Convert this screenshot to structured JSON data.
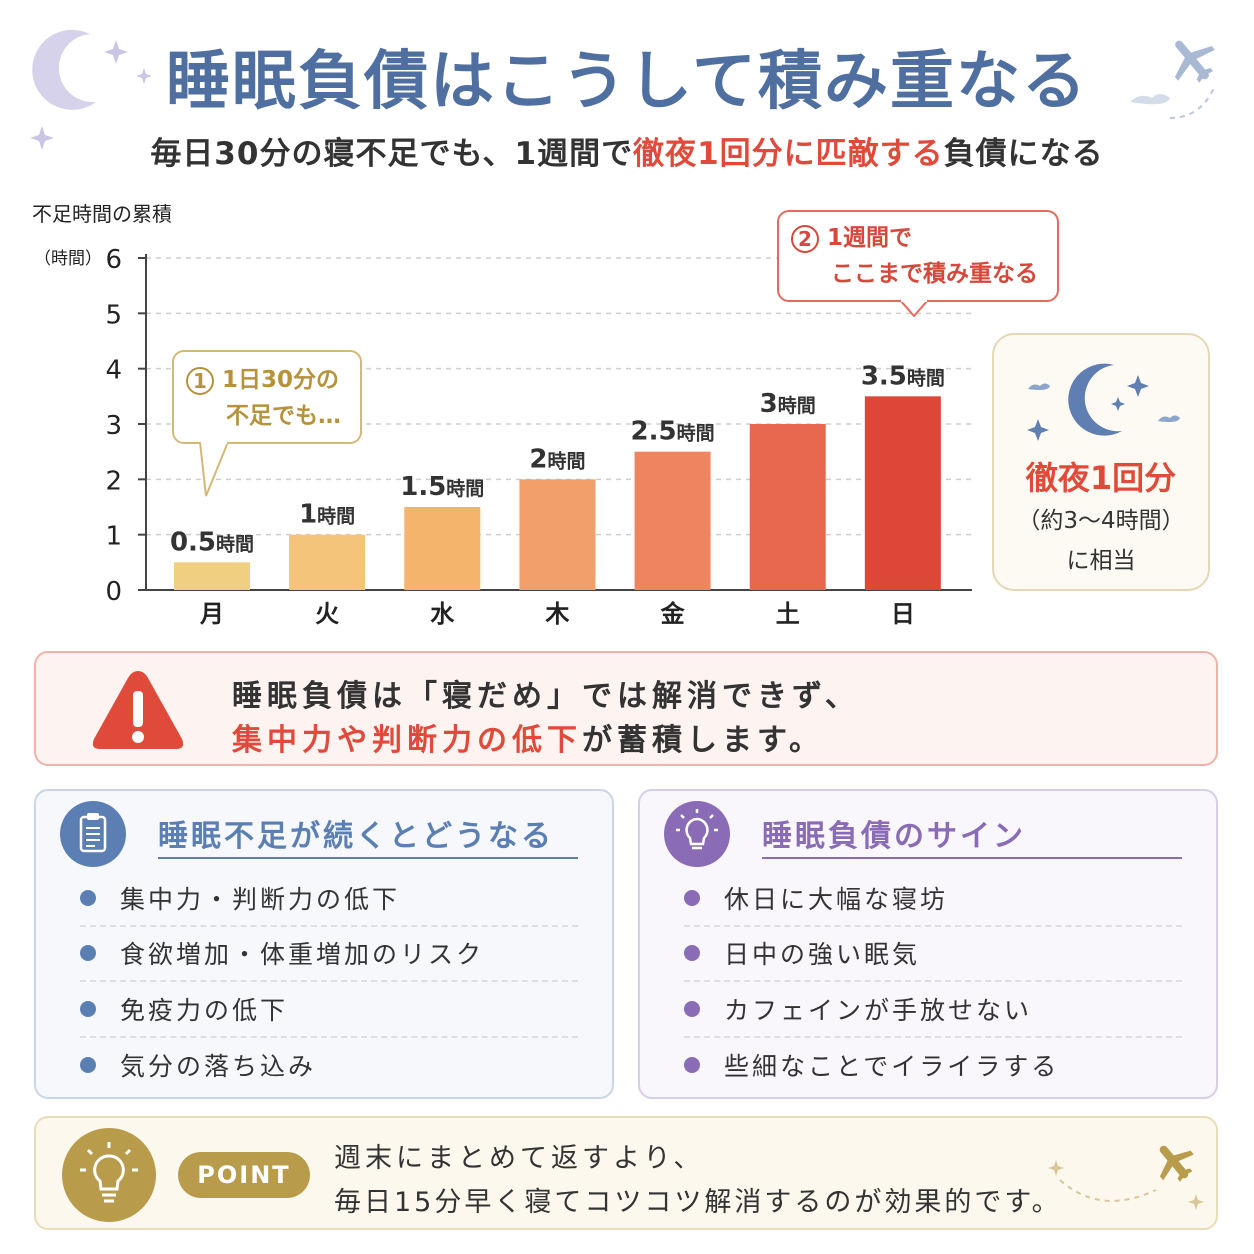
{
  "header": {
    "title": "睡眠負債はこうして積み重なる",
    "subtitle_pre": "毎日30分の寝不足でも、1週間で",
    "subtitle_highlight": "徹夜1回分に匹敵する",
    "subtitle_post": "負債になる"
  },
  "chart_data": {
    "type": "bar",
    "title": "",
    "ylabel": "不足時間の累積",
    "yunit": "（時間）",
    "xlabel": "",
    "ylim": [
      0,
      6
    ],
    "yticks": [
      0,
      1,
      2,
      3,
      4,
      5,
      6
    ],
    "categories": [
      "月",
      "火",
      "水",
      "木",
      "金",
      "土",
      "日"
    ],
    "values": [
      0.5,
      1,
      1.5,
      2,
      2.5,
      3,
      3.5
    ],
    "value_labels": [
      "0.5",
      "1",
      "1.5",
      "2",
      "2.5",
      "3",
      "3.5"
    ],
    "value_unit": "時間",
    "bar_colors": [
      "#efcf82",
      "#f4c47b",
      "#f4b46b",
      "#f29f6a",
      "#ee8460",
      "#e8674f",
      "#dd4738"
    ],
    "grid": true
  },
  "callouts": {
    "first": {
      "num": "1",
      "line1": "1日30分の",
      "line2": "不足でも…"
    },
    "second": {
      "num": "2",
      "line1": "1週間で",
      "line2": "ここまで積み重なる"
    }
  },
  "night_card": {
    "title": "徹夜1回分",
    "sub": "（約3〜4時間）",
    "sub2": "に相当",
    "icon": "moon-stars-icon"
  },
  "warning": {
    "icon": "warning-icon",
    "line1": "睡眠負債は「寝だめ」では解消できず、",
    "line2_highlight": "集中力や判断力の低下",
    "line2_post": "が蓄積します。"
  },
  "panel_left": {
    "icon": "clipboard-icon",
    "title": "睡眠不足が続くとどうなる",
    "accent": "#5c7fb3",
    "items": [
      "集中力・判断力の低下",
      "食欲増加・体重増加のリスク",
      "免疫力の低下",
      "気分の落ち込み"
    ]
  },
  "panel_right": {
    "icon": "lightbulb-icon",
    "title": "睡眠負債のサイン",
    "accent": "#8a6bb5",
    "items": [
      "休日に大幅な寝坊",
      "日中の強い眠気",
      "カフェインが手放せない",
      "些細なことでイライラする"
    ]
  },
  "point": {
    "icon": "lightbulb-icon",
    "badge": "POINT",
    "line1": "週末にまとめて返すより、",
    "line2": "毎日15分早く寝てコツコツ解消するのが効果的です。"
  }
}
